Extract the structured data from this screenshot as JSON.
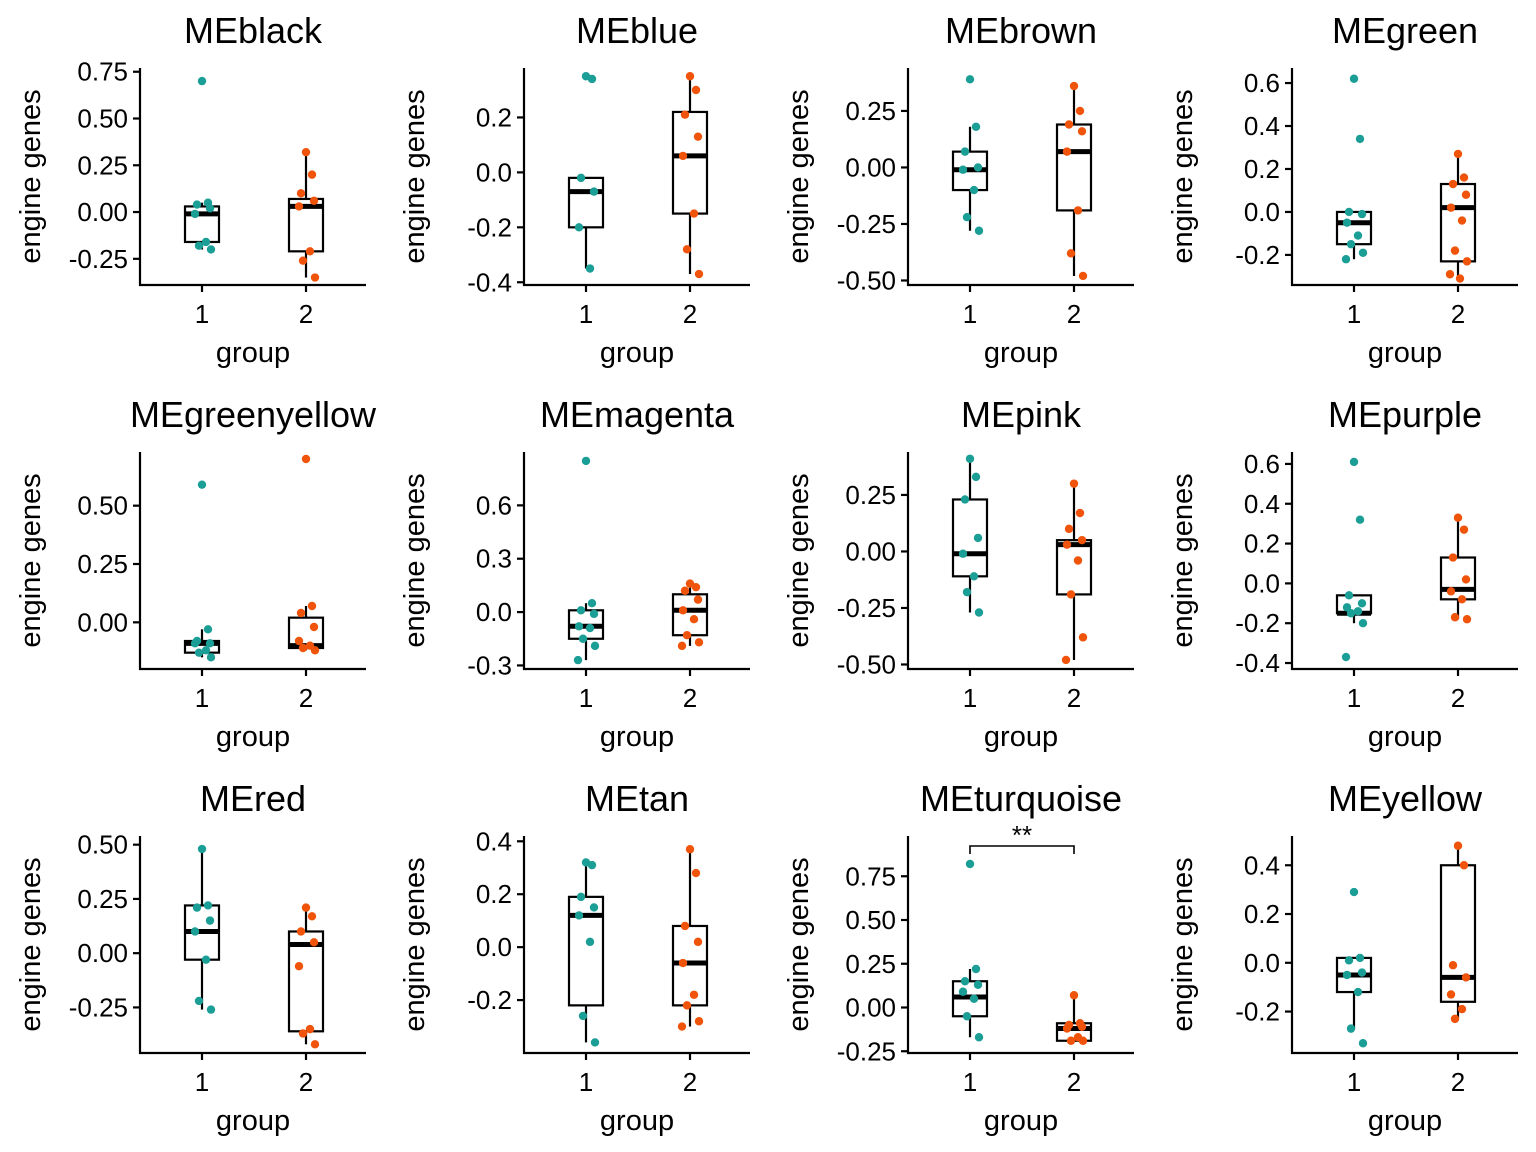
{
  "chart_data": [
    {
      "type": "box",
      "title": "MEblack",
      "xlabel": "group",
      "ylabel": "engine genes",
      "categories": [
        "1",
        "2"
      ],
      "ylim": [
        -0.39,
        0.77
      ],
      "yticks": [
        -0.25,
        0.0,
        0.25,
        0.5,
        0.75
      ],
      "ytick_labels": [
        "-0.25",
        "0.00",
        "0.25",
        "0.50",
        "0.75"
      ],
      "boxes": [
        {
          "min": -0.2,
          "q1": -0.16,
          "median": -0.01,
          "q3": 0.03,
          "max": 0.05
        },
        {
          "min": -0.35,
          "q1": -0.21,
          "median": 0.03,
          "q3": 0.07,
          "max": 0.31
        }
      ],
      "points": [
        [
          0.7,
          0.05,
          0.04,
          0.02,
          -0.01,
          -0.16,
          -0.18,
          -0.2
        ],
        [
          0.32,
          0.2,
          0.1,
          0.06,
          0.03,
          -0.21,
          -0.26,
          -0.35
        ]
      ]
    },
    {
      "type": "box",
      "title": "MEblue",
      "xlabel": "group",
      "ylabel": "engine genes",
      "categories": [
        "1",
        "2"
      ],
      "ylim": [
        -0.41,
        0.38
      ],
      "yticks": [
        -0.4,
        -0.2,
        0.0,
        0.2
      ],
      "ytick_labels": [
        "-0.4",
        "-0.2",
        "0.0",
        "0.2"
      ],
      "boxes": [
        {
          "min": -0.35,
          "q1": -0.2,
          "median": -0.07,
          "q3": -0.02,
          "max": -0.02
        },
        {
          "min": -0.37,
          "q1": -0.15,
          "median": 0.06,
          "q3": 0.22,
          "max": 0.35
        }
      ],
      "points": [
        [
          0.35,
          0.34,
          -0.02,
          -0.07,
          -0.2,
          -0.35
        ],
        [
          0.35,
          0.3,
          0.21,
          0.13,
          0.06,
          -0.15,
          -0.28,
          -0.37
        ]
      ]
    },
    {
      "type": "box",
      "title": "MEbrown",
      "xlabel": "group",
      "ylabel": "engine genes",
      "categories": [
        "1",
        "2"
      ],
      "ylim": [
        -0.52,
        0.44
      ],
      "yticks": [
        -0.5,
        -0.25,
        0.0,
        0.25
      ],
      "ytick_labels": [
        "-0.50",
        "-0.25",
        "0.00",
        "0.25"
      ],
      "boxes": [
        {
          "min": -0.28,
          "q1": -0.1,
          "median": -0.01,
          "q3": 0.07,
          "max": 0.18
        },
        {
          "min": -0.48,
          "q1": -0.19,
          "median": 0.07,
          "q3": 0.19,
          "max": 0.36
        }
      ],
      "points": [
        [
          0.39,
          0.18,
          0.07,
          0.0,
          -0.01,
          -0.1,
          -0.22,
          -0.28
        ],
        [
          0.36,
          0.25,
          0.19,
          0.16,
          0.07,
          -0.19,
          -0.38,
          -0.48
        ]
      ]
    },
    {
      "type": "box",
      "title": "MEgreen",
      "xlabel": "group",
      "ylabel": "engine genes",
      "categories": [
        "1",
        "2"
      ],
      "ylim": [
        -0.34,
        0.67
      ],
      "yticks": [
        -0.2,
        0.0,
        0.2,
        0.4,
        0.6
      ],
      "ytick_labels": [
        "-0.2",
        "0.0",
        "0.2",
        "0.4",
        "0.6"
      ],
      "boxes": [
        {
          "min": -0.22,
          "q1": -0.15,
          "median": -0.05,
          "q3": 0.0,
          "max": 0.0
        },
        {
          "min": -0.31,
          "q1": -0.23,
          "median": 0.02,
          "q3": 0.13,
          "max": 0.27
        }
      ],
      "points": [
        [
          0.62,
          0.34,
          0.0,
          -0.01,
          -0.05,
          -0.11,
          -0.15,
          -0.19,
          -0.22
        ],
        [
          0.27,
          0.16,
          0.13,
          0.08,
          0.02,
          -0.04,
          -0.18,
          -0.23,
          -0.29,
          -0.31
        ]
      ]
    },
    {
      "type": "box",
      "title": "MEgreenyellow",
      "xlabel": "group",
      "ylabel": "engine genes",
      "categories": [
        "1",
        "2"
      ],
      "ylim": [
        -0.2,
        0.73
      ],
      "yticks": [
        0.0,
        0.25,
        0.5
      ],
      "ytick_labels": [
        "0.00",
        "0.25",
        "0.50"
      ],
      "boxes": [
        {
          "min": -0.15,
          "q1": -0.13,
          "median": -0.09,
          "q3": -0.08,
          "max": -0.03
        },
        {
          "min": -0.12,
          "q1": -0.11,
          "median": -0.1,
          "q3": 0.02,
          "max": 0.07
        }
      ],
      "points": [
        [
          0.59,
          -0.03,
          -0.08,
          -0.09,
          -0.09,
          -0.12,
          -0.13,
          -0.15
        ],
        [
          0.7,
          0.07,
          0.04,
          -0.02,
          -0.08,
          -0.1,
          -0.11,
          -0.12
        ]
      ]
    },
    {
      "type": "box",
      "title": "MEmagenta",
      "xlabel": "group",
      "ylabel": "engine genes",
      "categories": [
        "1",
        "2"
      ],
      "ylim": [
        -0.32,
        0.9
      ],
      "yticks": [
        -0.3,
        0.0,
        0.3,
        0.6
      ],
      "ytick_labels": [
        "-0.3",
        "0.0",
        "0.3",
        "0.6"
      ],
      "boxes": [
        {
          "min": -0.27,
          "q1": -0.15,
          "median": -0.08,
          "q3": 0.01,
          "max": 0.05
        },
        {
          "min": -0.19,
          "q1": -0.13,
          "median": 0.01,
          "q3": 0.1,
          "max": 0.15
        }
      ],
      "points": [
        [
          0.85,
          0.05,
          0.01,
          -0.01,
          -0.08,
          -0.09,
          -0.15,
          -0.19,
          -0.27
        ],
        [
          0.16,
          0.14,
          0.12,
          0.07,
          0.01,
          -0.04,
          -0.13,
          -0.17,
          -0.19
        ]
      ]
    },
    {
      "type": "box",
      "title": "MEpink",
      "xlabel": "group",
      "ylabel": "engine genes",
      "categories": [
        "1",
        "2"
      ],
      "ylim": [
        -0.52,
        0.44
      ],
      "yticks": [
        -0.5,
        -0.25,
        0.0,
        0.25
      ],
      "ytick_labels": [
        "-0.50",
        "-0.25",
        "0.00",
        "0.25"
      ],
      "boxes": [
        {
          "min": -0.27,
          "q1": -0.11,
          "median": -0.01,
          "q3": 0.23,
          "max": 0.4
        },
        {
          "min": -0.48,
          "q1": -0.19,
          "median": 0.03,
          "q3": 0.05,
          "max": 0.29
        }
      ],
      "points": [
        [
          0.41,
          0.33,
          0.23,
          0.06,
          -0.01,
          -0.11,
          -0.18,
          -0.27
        ],
        [
          0.3,
          0.17,
          0.1,
          0.05,
          0.03,
          -0.04,
          -0.19,
          -0.38,
          -0.48
        ]
      ]
    },
    {
      "type": "box",
      "title": "MEpurple",
      "xlabel": "group",
      "ylabel": "engine genes",
      "categories": [
        "1",
        "2"
      ],
      "ylim": [
        -0.43,
        0.66
      ],
      "yticks": [
        -0.4,
        -0.2,
        0.0,
        0.2,
        0.4,
        0.6
      ],
      "ytick_labels": [
        "-0.4",
        "-0.2",
        "0.0",
        "0.2",
        "0.4",
        "0.6"
      ],
      "boxes": [
        {
          "min": -0.2,
          "q1": -0.15,
          "median": -0.15,
          "q3": -0.06,
          "max": -0.06
        },
        {
          "min": -0.18,
          "q1": -0.08,
          "median": -0.03,
          "q3": 0.13,
          "max": 0.32
        }
      ],
      "points": [
        [
          0.61,
          0.32,
          -0.06,
          -0.1,
          -0.12,
          -0.14,
          -0.15,
          -0.2,
          -0.37
        ],
        [
          0.33,
          0.27,
          0.13,
          0.02,
          -0.04,
          -0.08,
          -0.17,
          -0.18
        ]
      ]
    },
    {
      "type": "box",
      "title": "MEred",
      "xlabel": "group",
      "ylabel": "engine genes",
      "categories": [
        "1",
        "2"
      ],
      "ylim": [
        -0.46,
        0.54
      ],
      "yticks": [
        -0.25,
        0.0,
        0.25,
        0.5
      ],
      "ytick_labels": [
        "-0.25",
        "0.00",
        "0.25",
        "0.50"
      ],
      "boxes": [
        {
          "min": -0.26,
          "q1": -0.03,
          "median": 0.1,
          "q3": 0.22,
          "max": 0.48
        },
        {
          "min": -0.42,
          "q1": -0.36,
          "median": 0.04,
          "q3": 0.1,
          "max": 0.21
        }
      ],
      "points": [
        [
          0.48,
          0.22,
          0.21,
          0.15,
          0.1,
          -0.03,
          -0.22,
          -0.26
        ],
        [
          0.21,
          0.17,
          0.1,
          0.05,
          -0.06,
          -0.35,
          -0.37,
          -0.42
        ]
      ]
    },
    {
      "type": "box",
      "title": "MEtan",
      "xlabel": "group",
      "ylabel": "engine genes",
      "categories": [
        "1",
        "2"
      ],
      "ylim": [
        -0.4,
        0.42
      ],
      "yticks": [
        -0.2,
        0.0,
        0.2,
        0.4
      ],
      "ytick_labels": [
        "-0.2",
        "0.0",
        "0.2",
        "0.4"
      ],
      "boxes": [
        {
          "min": -0.36,
          "q1": -0.22,
          "median": 0.12,
          "q3": 0.19,
          "max": 0.32
        },
        {
          "min": -0.3,
          "q1": -0.22,
          "median": -0.06,
          "q3": 0.08,
          "max": 0.37
        }
      ],
      "points": [
        [
          0.32,
          0.31,
          0.19,
          0.15,
          0.12,
          0.02,
          -0.26,
          -0.36
        ],
        [
          0.37,
          0.28,
          0.08,
          0.02,
          -0.06,
          -0.18,
          -0.22,
          -0.28,
          -0.3
        ]
      ]
    },
    {
      "type": "box",
      "title": "MEturquoise",
      "xlabel": "group",
      "ylabel": "engine genes",
      "categories": [
        "1",
        "2"
      ],
      "ylim": [
        -0.26,
        0.98
      ],
      "yticks": [
        -0.25,
        0.0,
        0.25,
        0.5,
        0.75
      ],
      "ytick_labels": [
        "-0.25",
        "0.00",
        "0.25",
        "0.50",
        "0.75"
      ],
      "boxes": [
        {
          "min": -0.17,
          "q1": -0.05,
          "median": 0.06,
          "q3": 0.15,
          "max": 0.22
        },
        {
          "min": -0.19,
          "q1": -0.19,
          "median": -0.12,
          "q3": -0.09,
          "max": 0.07
        }
      ],
      "points": [
        [
          0.82,
          0.22,
          0.15,
          0.13,
          0.09,
          0.05,
          -0.05,
          -0.17
        ],
        [
          0.07,
          -0.09,
          -0.1,
          -0.11,
          -0.12,
          -0.17,
          -0.19,
          -0.19
        ]
      ],
      "annotation": {
        "text": "**",
        "from": "1",
        "to": "2"
      }
    },
    {
      "type": "box",
      "title": "MEyellow",
      "xlabel": "group",
      "ylabel": "engine genes",
      "categories": [
        "1",
        "2"
      ],
      "ylim": [
        -0.37,
        0.52
      ],
      "yticks": [
        -0.2,
        0.0,
        0.2,
        0.4
      ],
      "ytick_labels": [
        "-0.2",
        "0.0",
        "0.2",
        "0.4"
      ],
      "boxes": [
        {
          "min": -0.27,
          "q1": -0.12,
          "median": -0.05,
          "q3": 0.02,
          "max": 0.02
        },
        {
          "min": -0.23,
          "q1": -0.16,
          "median": -0.06,
          "q3": 0.4,
          "max": 0.48
        }
      ],
      "points": [
        [
          0.29,
          0.02,
          0.01,
          -0.04,
          -0.05,
          -0.12,
          -0.27,
          -0.33
        ],
        [
          0.48,
          0.4,
          -0.01,
          -0.06,
          -0.13,
          -0.19,
          -0.23
        ]
      ]
    }
  ],
  "colors": {
    "group1": "#1a9e96",
    "group2": "#f0530a"
  }
}
